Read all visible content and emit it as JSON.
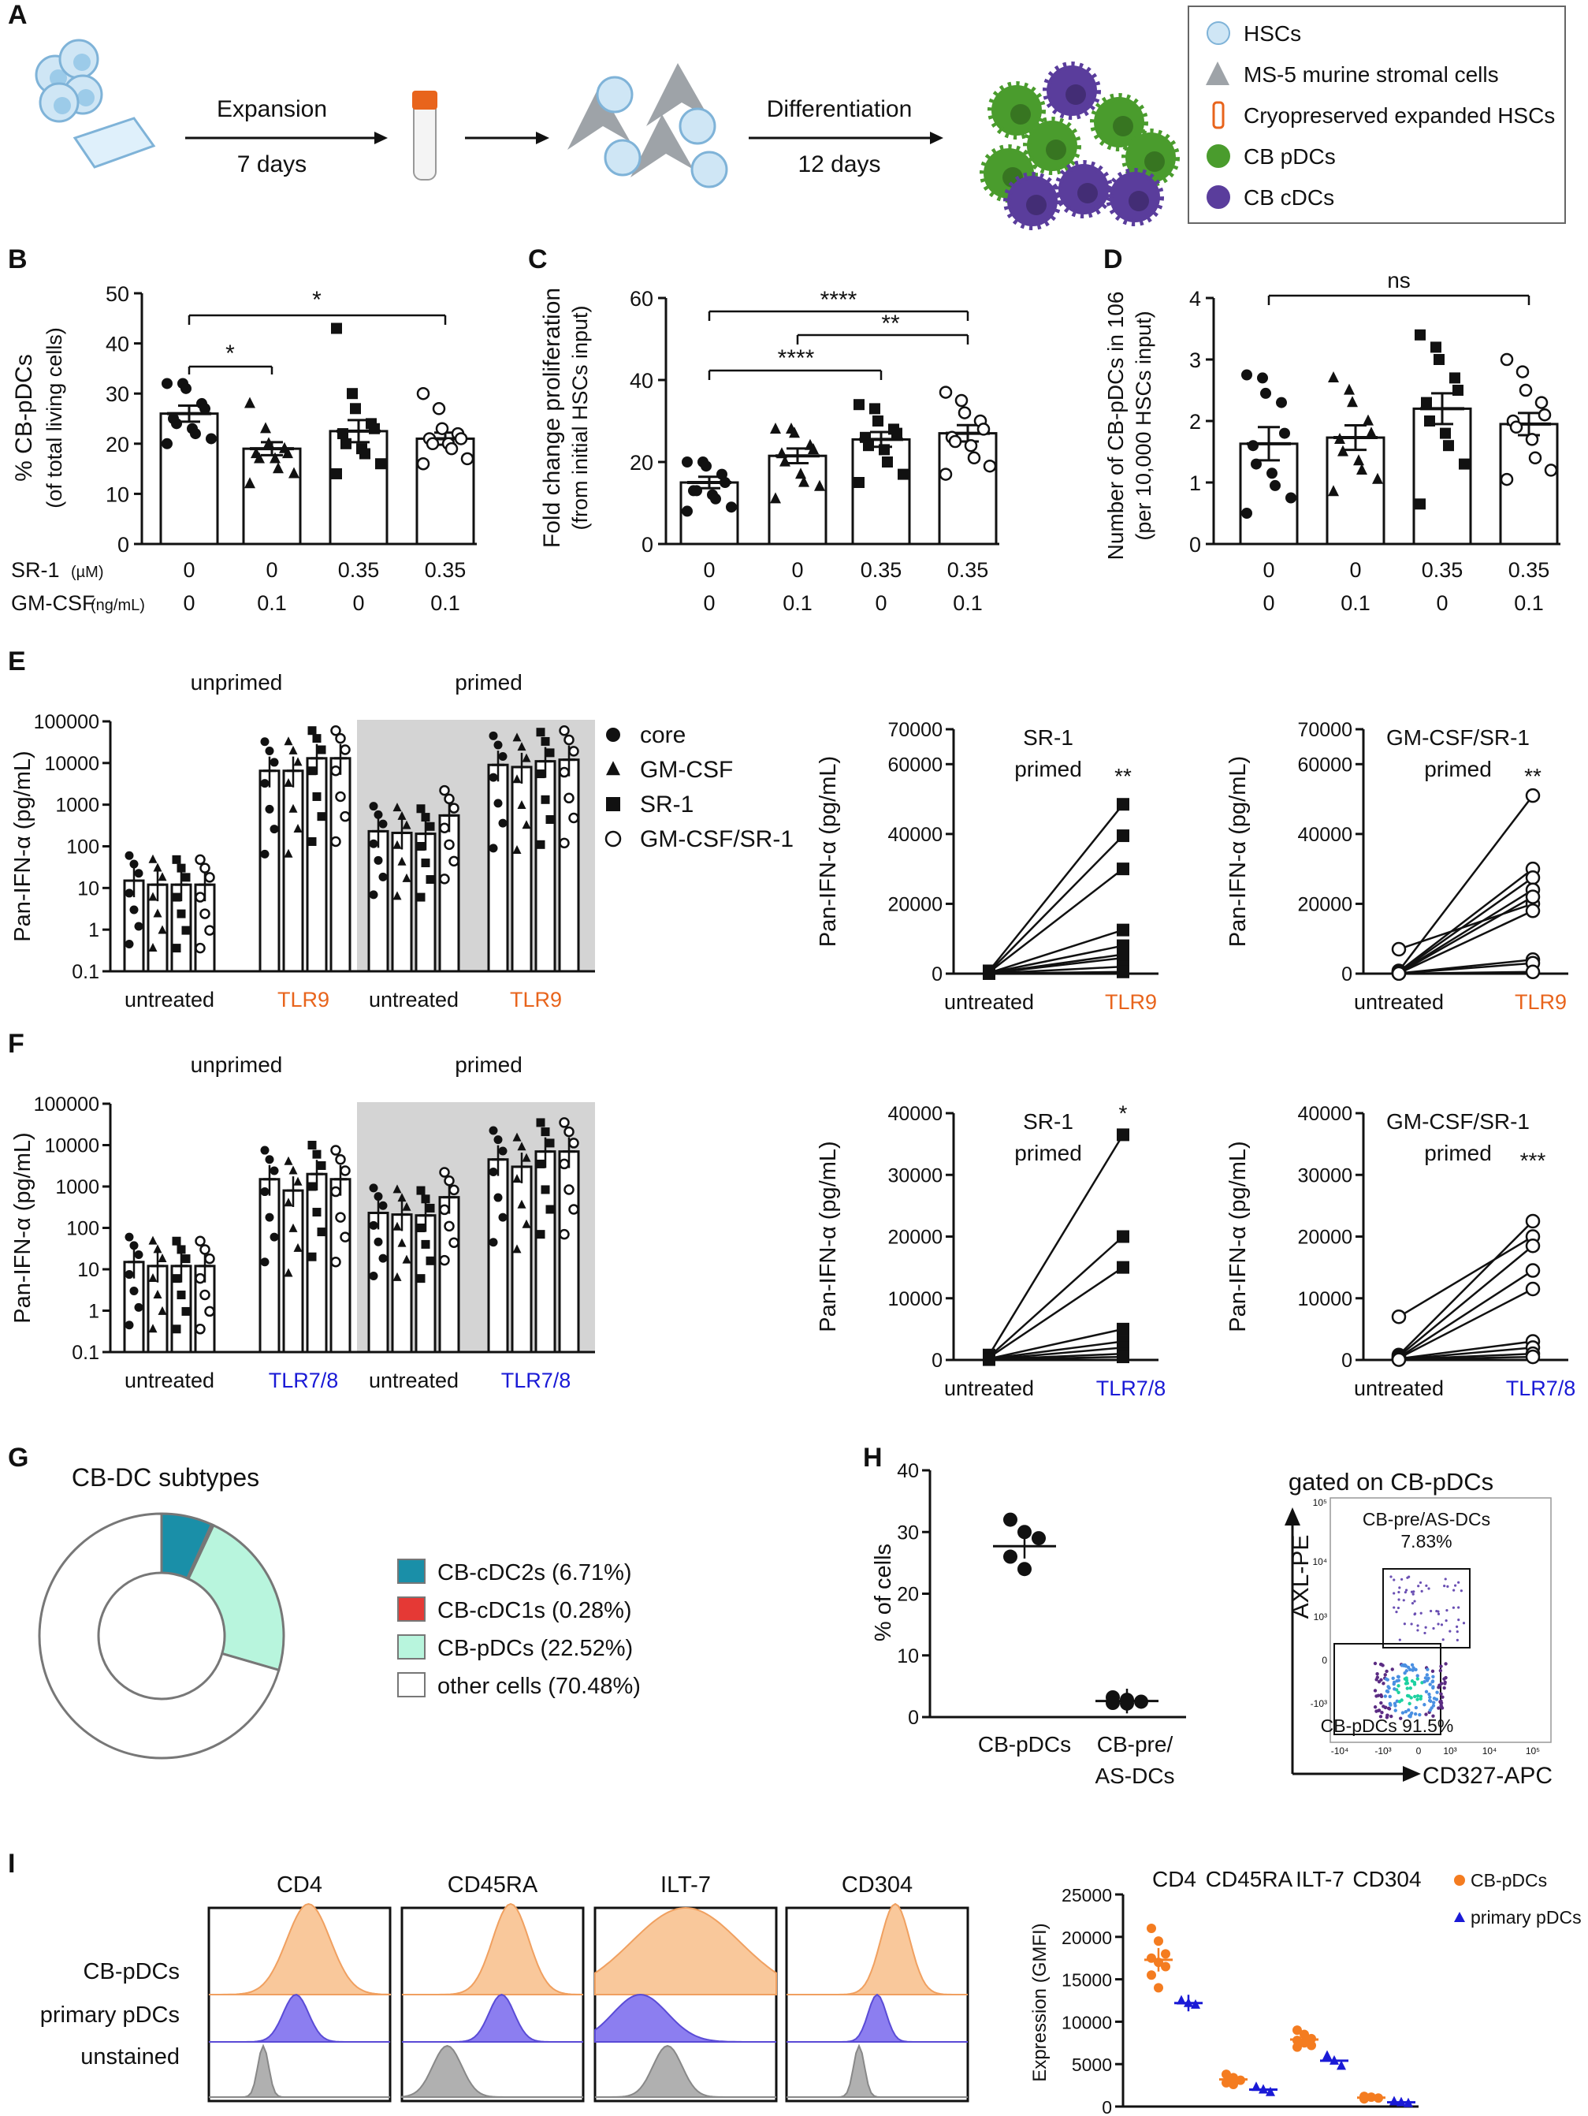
{
  "panels": {
    "A": {
      "label": "A",
      "step1_top": "Expansion",
      "step1_bottom": "7 days",
      "step2_top": "Differentiation",
      "step2_bottom": "12 days",
      "legend": [
        "HSCs",
        "MS-5 murine stromal cells",
        "Cryopreserved expanded HSCs",
        "CB pDCs",
        "CB cDCs"
      ]
    },
    "B": {
      "label": "B",
      "ylabel1": "% CB-pDCs",
      "ylabel2": "(of total living cells)",
      "sig": [
        "*",
        "*"
      ]
    },
    "C": {
      "label": "C",
      "ylabel1": "Fold change proliferation",
      "ylabel2": "(from initial HSCs input)",
      "sig": [
        "****",
        "**",
        "****"
      ]
    },
    "D": {
      "label": "D",
      "ylabel1": "Number of CB-pDCs in 10",
      "ylabel_sup": "6",
      "ylabel2": "(per 10,000 HSCs input)",
      "sig": [
        "ns"
      ]
    },
    "conditions": {
      "sr1_label": "SR-1",
      "sr1_unit": "(µM)",
      "gm_label": "GM-CSF",
      "gm_unit": "(ng/mL)",
      "sr1_values": [
        "0",
        "0",
        "0.35",
        "0.35"
      ],
      "gm_values": [
        "0",
        "0.1",
        "0",
        "0.1"
      ]
    },
    "E": {
      "label": "E",
      "unprimed": "unprimed",
      "primed": "primed",
      "ylabel": "Pan-IFN-α (pg/mL)",
      "x_untreated": "untreated",
      "x_stim": "TLR9",
      "legend": [
        "core",
        "GM-CSF",
        "SR-1",
        "GM-CSF/SR-1"
      ],
      "pair1_title1": "SR-1",
      "pair1_title2": "primed",
      "pair1_sig": "**",
      "pair2_title1": "GM-CSF/SR-1",
      "pair2_title2": "primed",
      "pair2_sig": "**"
    },
    "F": {
      "label": "F",
      "unprimed": "unprimed",
      "primed": "primed",
      "ylabel": "Pan-IFN-α (pg/mL)",
      "x_untreated": "untreated",
      "x_stim": "TLR7/8",
      "pair1_title1": "SR-1",
      "pair1_title2": "primed",
      "pair1_sig": "*",
      "pair2_title1": "GM-CSF/SR-1",
      "pair2_title2": "primed",
      "pair2_sig": "***"
    },
    "G": {
      "label": "G",
      "title": "CB-DC subtypes",
      "legend": [
        "CB-cDC2s (6.71%)",
        "CB-cDC1s (0.28%)",
        "CB-pDCs (22.52%)",
        "other cells (70.48%)"
      ]
    },
    "H": {
      "label": "H",
      "ylabel": "% of cells",
      "x1": "CB-pDCs",
      "x2a": "CB-pre/",
      "x2b": "AS-DCs",
      "flow_title": "gated on CB-pDCs",
      "gate1_name": "CB-pre/AS-DCs",
      "gate1_pct": "7.83%",
      "gate2": "CB-pDCs 91.5%",
      "y_axis": "AXL-PE",
      "x_axis": "CD327-APC",
      "flow_ticks_y": [
        "10⁵",
        "10⁴",
        "10³",
        "0",
        "-10³"
      ],
      "flow_ticks_x": [
        "-10⁴",
        "-10³",
        "0",
        "10³",
        "10⁴",
        "10⁵"
      ]
    },
    "I": {
      "label": "I",
      "markers": [
        "CD4",
        "CD45RA",
        "ILT-7",
        "CD304"
      ],
      "rows": [
        "CB-pDCs",
        "primary pDCs",
        "unstained"
      ],
      "ylabel": "Expression (GMFI)",
      "legend": [
        "CB-pDCs",
        "primary pDCs"
      ]
    }
  },
  "chart_data": [
    {
      "type": "bar",
      "title": "B",
      "ylabel": "% CB-pDCs (of total living cells)",
      "categories": [
        "0/0",
        "0/0.1",
        "0.35/0",
        "0.35/0.1"
      ],
      "values": [
        26,
        19,
        22.5,
        21
      ],
      "sem": [
        1.6,
        1.3,
        2.2,
        1.2
      ],
      "ylim": [
        0,
        50
      ],
      "yticks": [
        "0",
        "10",
        "20",
        "30",
        "40",
        "50"
      ],
      "points": [
        [
          32,
          32,
          31,
          28,
          27,
          25,
          24,
          23,
          22,
          21,
          20
        ],
        [
          28,
          23,
          20,
          19,
          18,
          18,
          17,
          17,
          15,
          14,
          12
        ],
        [
          43,
          30,
          27,
          24,
          23,
          22,
          20,
          19,
          18,
          16,
          14
        ],
        [
          30,
          27,
          23,
          22,
          21,
          21,
          20,
          20,
          19,
          17,
          16
        ]
      ]
    },
    {
      "type": "bar",
      "title": "C",
      "ylabel": "Fold change proliferation (from initial HSCs input)",
      "categories": [
        "0/0",
        "0/0.1",
        "0.35/0",
        "0.35/0.1"
      ],
      "values": [
        15,
        21.5,
        25.5,
        27
      ],
      "sem": [
        1.4,
        1.8,
        1.8,
        2.0
      ],
      "ylim": [
        0,
        60
      ],
      "yticks": [
        "0",
        "20",
        "40",
        "60"
      ],
      "points": [
        [
          20,
          20,
          19,
          17,
          15,
          13,
          13,
          12,
          11,
          9,
          8
        ],
        [
          28,
          28,
          27,
          24,
          23,
          22,
          20,
          17,
          15,
          14,
          11
        ],
        [
          34,
          33,
          30,
          28,
          27,
          26,
          24,
          23,
          20,
          17,
          15
        ],
        [
          37,
          35,
          32,
          30,
          28,
          26,
          25,
          24,
          21,
          19,
          17
        ]
      ]
    },
    {
      "type": "bar",
      "title": "D",
      "ylabel": "Number of CB-pDCs in 10^6 (per 10,000 HSCs input)",
      "categories": [
        "0/0",
        "0/0.1",
        "0.35/0",
        "0.35/0.1"
      ],
      "values": [
        1.63,
        1.73,
        2.2,
        1.95
      ],
      "sem": [
        0.27,
        0.2,
        0.25,
        0.18
      ],
      "ylim": [
        0,
        4
      ],
      "yticks": [
        "0",
        "1",
        "2",
        "3",
        "4"
      ],
      "points": [
        [
          2.75,
          2.7,
          2.45,
          2.3,
          1.8,
          1.6,
          1.3,
          1.15,
          0.95,
          0.75,
          0.5
        ],
        [
          2.7,
          2.5,
          2.3,
          2.0,
          1.8,
          1.7,
          1.5,
          1.35,
          1.2,
          1.05,
          0.85
        ],
        [
          3.4,
          3.2,
          3.0,
          2.7,
          2.5,
          2.3,
          2.0,
          1.8,
          1.6,
          1.3,
          0.65
        ],
        [
          3.0,
          2.8,
          2.5,
          2.3,
          2.1,
          2.0,
          1.9,
          1.7,
          1.4,
          1.2,
          1.05
        ]
      ]
    },
    {
      "type": "bar",
      "title": "E",
      "scale": "log",
      "yticks": [
        "100000",
        "10000",
        "1000",
        "100",
        "10",
        "1",
        "0.1"
      ],
      "groups": [
        "unprimed untreated",
        "unprimed TLR9",
        "primed untreated",
        "primed TLR9"
      ],
      "series_names": [
        "core",
        "GM-CSF",
        "SR-1",
        "GM-CSF/SR-1"
      ],
      "values": [
        [
          15,
          12,
          12,
          12
        ],
        [
          6500,
          6500,
          13000,
          13000
        ],
        [
          230,
          210,
          200,
          550
        ],
        [
          9000,
          8000,
          11000,
          12000
        ]
      ]
    },
    {
      "type": "line",
      "title": "E SR-1 primed",
      "ylim": [
        0,
        70000
      ],
      "yticks": [
        "0",
        "20000",
        "40000",
        "60000",
        "70000"
      ],
      "pairs": [
        [
          800,
          48500
        ],
        [
          500,
          39500
        ],
        [
          400,
          30000
        ],
        [
          200,
          12500
        ],
        [
          200,
          8000
        ],
        [
          100,
          5500
        ],
        [
          100,
          4500
        ],
        [
          50,
          2000
        ],
        [
          30,
          500
        ]
      ]
    },
    {
      "type": "line",
      "title": "E GM-CSF/SR-1 primed",
      "ylim": [
        0,
        70000
      ],
      "yticks": [
        "0",
        "20000",
        "40000",
        "60000",
        "70000"
      ],
      "pairs": [
        [
          7000,
          20000
        ],
        [
          800,
          51000
        ],
        [
          600,
          30000
        ],
        [
          400,
          27500
        ],
        [
          300,
          24000
        ],
        [
          200,
          22000
        ],
        [
          100,
          18000
        ],
        [
          100,
          4000
        ],
        [
          50,
          3000
        ],
        [
          30,
          500
        ]
      ]
    },
    {
      "type": "bar",
      "title": "F",
      "scale": "log",
      "yticks": [
        "100000",
        "10000",
        "1000",
        "100",
        "10",
        "1",
        "0.1"
      ],
      "groups": [
        "unprimed untreated",
        "unprimed TLR7/8",
        "primed untreated",
        "primed TLR7/8"
      ],
      "series_names": [
        "core",
        "GM-CSF",
        "SR-1",
        "GM-CSF/SR-1"
      ],
      "values": [
        [
          15,
          12,
          12,
          12
        ],
        [
          1500,
          800,
          2000,
          1500
        ],
        [
          230,
          210,
          200,
          550
        ],
        [
          4500,
          3000,
          7000,
          7000
        ]
      ]
    },
    {
      "type": "line",
      "title": "F SR-1 primed",
      "ylim": [
        0,
        40000
      ],
      "yticks": [
        "0",
        "10000",
        "20000",
        "30000",
        "40000"
      ],
      "pairs": [
        [
          800,
          36500
        ],
        [
          500,
          20000
        ],
        [
          400,
          15000
        ],
        [
          200,
          5000
        ],
        [
          200,
          3000
        ],
        [
          100,
          2000
        ],
        [
          100,
          1000
        ],
        [
          50,
          500
        ]
      ]
    },
    {
      "type": "line",
      "title": "F GM-CSF/SR-1 primed",
      "ylim": [
        0,
        40000
      ],
      "yticks": [
        "0",
        "10000",
        "20000",
        "30000",
        "40000"
      ],
      "pairs": [
        [
          7000,
          20000
        ],
        [
          800,
          22500
        ],
        [
          600,
          18500
        ],
        [
          400,
          14500
        ],
        [
          300,
          11500
        ],
        [
          200,
          3000
        ],
        [
          100,
          2000
        ],
        [
          100,
          1000
        ],
        [
          50,
          500
        ]
      ]
    },
    {
      "type": "pie",
      "title": "CB-DC subtypes",
      "labels": [
        "CB-cDC2s",
        "CB-cDC1s",
        "CB-pDCs",
        "other cells"
      ],
      "values": [
        6.71,
        0.28,
        22.52,
        70.48
      ],
      "colors": [
        "#1a8fa8",
        "#e53935",
        "#b8f5dd",
        "#ffffff"
      ]
    },
    {
      "type": "scatter",
      "title": "H",
      "ylabel": "% of cells",
      "ylim": [
        0,
        40
      ],
      "yticks": [
        "0",
        "10",
        "20",
        "30",
        "40"
      ],
      "categories": [
        "CB-pDCs",
        "CB-pre/AS-DCs"
      ],
      "points": [
        [
          32,
          30,
          29,
          26,
          24
        ],
        [
          3.2,
          2.8,
          2.5,
          2.3,
          2.2
        ]
      ],
      "means": [
        27.7,
        2.6
      ]
    },
    {
      "type": "scatter",
      "title": "I",
      "ylabel": "Expression (GMFI)",
      "ylim": [
        0,
        25000
      ],
      "yticks": [
        "0",
        "5000",
        "10000",
        "15000",
        "20000",
        "25000"
      ],
      "categories": [
        "CD4",
        "CD45RA",
        "ILT-7",
        "CD304"
      ],
      "series": [
        {
          "name": "CB-pDCs",
          "color": "#f47c20",
          "values": [
            [
              21000,
              19500,
              18000,
              17500,
              17000,
              16500,
              15500,
              14000
            ],
            [
              3800,
              3400,
              3100,
              2800,
              2600
            ],
            [
              9000,
              8500,
              8000,
              7800,
              7500,
              7200,
              7000
            ],
            [
              1200,
              1100,
              1000,
              900
            ]
          ]
        },
        {
          "name": "primary pDCs",
          "color": "#1a1ad6",
          "values": [
            [
              12500,
              12200,
              12000
            ],
            [
              2300,
              2000,
              1700
            ],
            [
              6000,
              5400,
              4800
            ],
            [
              600,
              500,
              400
            ]
          ]
        }
      ],
      "means": [
        [
          17300,
          12200
        ],
        [
          3200,
          2000
        ],
        [
          7900,
          5400
        ],
        [
          1050,
          500
        ]
      ]
    }
  ]
}
